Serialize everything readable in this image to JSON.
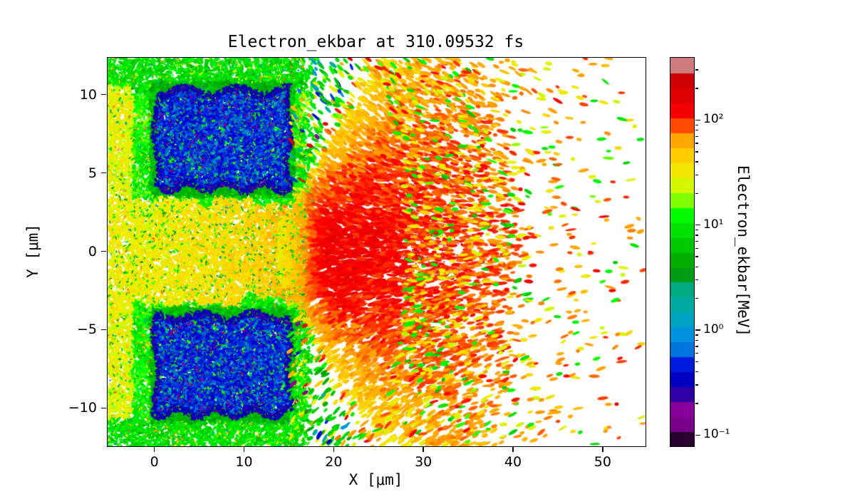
{
  "chart_data": {
    "type": "heatmap",
    "title": "Electron_ekbar at 310.09532 fs",
    "xlabel": "X [μm]",
    "ylabel": "Y [μm]",
    "xlim": [
      -5.3,
      54.7
    ],
    "ylim": [
      -12.4,
      12.4
    ],
    "x_ticks": [
      0,
      10,
      20,
      30,
      40,
      50
    ],
    "y_ticks": [
      -10,
      -5,
      0,
      5,
      10
    ],
    "grid": false,
    "background": "white",
    "colorbar": {
      "label": "Electron_ekbar[MeV]",
      "scale": "log",
      "colormap": "nipy_spectral",
      "range_log10": [
        -1.1,
        2.6
      ],
      "tick_values": [
        100,
        10,
        1,
        0.1
      ],
      "tick_labels": [
        "10²",
        "10¹",
        "10⁰",
        "10⁻¹"
      ],
      "n_color_segments": 26
    },
    "features": {
      "description": "Particle-in-cell simulation snapshot of mean electron kinetic energy around a double-block target with a central channel and a hot plume expanding to the right",
      "plasma_cloud": {
        "x_range": [
          -5.3,
          17.8
        ],
        "energy_mev_range": [
          6,
          25
        ]
      },
      "target_blocks": [
        {
          "x_range": [
            -0.1,
            15.15
          ],
          "y_range": [
            3.95,
            10.45
          ],
          "energy_mev": 0.5
        },
        {
          "x_range": [
            -0.1,
            15.15
          ],
          "y_range": [
            -10.45,
            -3.95
          ],
          "energy_mev": 0.5
        }
      ],
      "channel": {
        "x_range": [
          -5.3,
          15
        ],
        "y_halfwidth_um": 3.6,
        "energy_mev": 35
      },
      "plume": {
        "apex": [
          14,
          0
        ],
        "half_angle_deg": 42,
        "extent_um": 33,
        "core_energy_mev": 150,
        "peak_energy_mev": 330
      },
      "scattered_streaks": {
        "extent_x_um": 55,
        "energy_mev_range": [
          0.15,
          60
        ]
      }
    }
  }
}
